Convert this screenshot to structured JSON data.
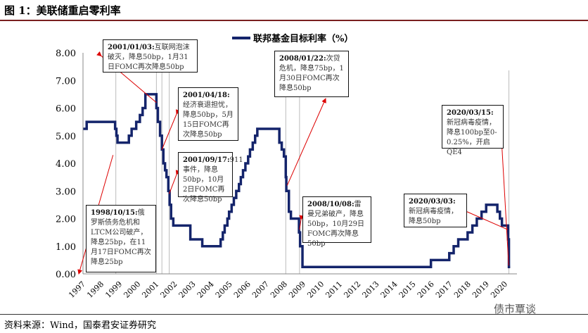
{
  "title": "图 1：美联储重启零利率",
  "source": "资料来源：Wind，国泰君安证券研究",
  "watermark": "债市覃谈",
  "chart_data": {
    "type": "line",
    "title": "",
    "legend": "联邦基金目标利率（%）",
    "legend_placement": "top-center",
    "xlabel": "",
    "ylabel": "",
    "ylim": [
      0,
      8
    ],
    "yticks": [
      "0.00",
      "1.00",
      "2.00",
      "3.00",
      "4.00",
      "5.00",
      "6.00",
      "7.00",
      "8.00"
    ],
    "xticks": [
      "1997",
      "1998",
      "1999",
      "2000",
      "2001",
      "2002",
      "2003",
      "2004",
      "2005",
      "2006",
      "2007",
      "2008",
      "2009",
      "2010",
      "2011",
      "2012",
      "2013",
      "2014",
      "2015",
      "2016",
      "2017",
      "2018",
      "2019",
      "2020"
    ],
    "line_color": "#14246b",
    "series": [
      {
        "name": "联邦基金目标利率（%）",
        "points": [
          [
            1997.0,
            5.25
          ],
          [
            1997.2,
            5.5
          ],
          [
            1998.75,
            5.25
          ],
          [
            1998.82,
            5.0
          ],
          [
            1998.88,
            4.75
          ],
          [
            1999.5,
            5.0
          ],
          [
            1999.65,
            5.25
          ],
          [
            1999.9,
            5.5
          ],
          [
            2000.1,
            5.75
          ],
          [
            2000.25,
            6.0
          ],
          [
            2000.4,
            6.5
          ],
          [
            2001.0,
            6.0
          ],
          [
            2001.08,
            5.5
          ],
          [
            2001.2,
            5.0
          ],
          [
            2001.3,
            4.5
          ],
          [
            2001.38,
            4.0
          ],
          [
            2001.47,
            3.75
          ],
          [
            2001.55,
            3.5
          ],
          [
            2001.65,
            3.0
          ],
          [
            2001.72,
            2.5
          ],
          [
            2001.8,
            2.0
          ],
          [
            2001.92,
            1.75
          ],
          [
            2002.85,
            1.25
          ],
          [
            2003.5,
            1.0
          ],
          [
            2004.5,
            1.25
          ],
          [
            2004.62,
            1.5
          ],
          [
            2004.72,
            1.75
          ],
          [
            2004.87,
            2.0
          ],
          [
            2004.96,
            2.25
          ],
          [
            2005.1,
            2.5
          ],
          [
            2005.22,
            2.75
          ],
          [
            2005.35,
            3.0
          ],
          [
            2005.5,
            3.25
          ],
          [
            2005.6,
            3.5
          ],
          [
            2005.72,
            3.75
          ],
          [
            2005.85,
            4.0
          ],
          [
            2006.0,
            4.25
          ],
          [
            2006.1,
            4.5
          ],
          [
            2006.25,
            4.75
          ],
          [
            2006.38,
            5.0
          ],
          [
            2006.5,
            5.25
          ],
          [
            2007.7,
            4.75
          ],
          [
            2007.83,
            4.5
          ],
          [
            2007.95,
            4.25
          ],
          [
            2008.05,
            3.5
          ],
          [
            2008.08,
            3.0
          ],
          [
            2008.22,
            2.25
          ],
          [
            2008.33,
            2.0
          ],
          [
            2008.77,
            1.5
          ],
          [
            2008.83,
            1.0
          ],
          [
            2008.96,
            0.25
          ],
          [
            2015.96,
            0.5
          ],
          [
            2016.96,
            0.75
          ],
          [
            2017.2,
            1.0
          ],
          [
            2017.45,
            1.25
          ],
          [
            2017.96,
            1.5
          ],
          [
            2018.22,
            1.75
          ],
          [
            2018.46,
            2.0
          ],
          [
            2018.72,
            2.25
          ],
          [
            2018.97,
            2.5
          ],
          [
            2019.58,
            2.25
          ],
          [
            2019.72,
            2.0
          ],
          [
            2019.83,
            1.75
          ],
          [
            2020.17,
            1.25
          ],
          [
            2020.21,
            0.25
          ],
          [
            2020.28,
            0.25
          ]
        ]
      }
    ],
    "event_lines": [
      1998.79,
      2001.0,
      2001.3,
      2001.7,
      2008.05,
      2008.8,
      2020.21
    ],
    "annotations": [
      {
        "date": "1998/10/15:",
        "text": "俄罗斯债务危机和LTCM公司破产，降息25bp，在11月17日FOMC再次降息25bp",
        "target": [
          1998.79,
          4.9
        ]
      },
      {
        "date": "2001/01/03:",
        "text": "互联网泡沫破灭，降息50bp，1月31日FOMC再次降息50bp",
        "target": [
          2001.0,
          6.2
        ]
      },
      {
        "date": "2001/04/18:",
        "text": "经济衰退担忧，降息50bp，5月15日FOMC再次降息50bp",
        "target": [
          2001.3,
          4.5
        ]
      },
      {
        "date": "2001/09/17:",
        "text": "911事件，降息50bp，10月2日FOMC再次降息50bp",
        "target": [
          2001.7,
          2.9
        ]
      },
      {
        "date": "2008/01/22:",
        "text": "次贷危机，降息75bp，1月30日FOMC再次降息50bp",
        "target": [
          2008.05,
          3.8
        ]
      },
      {
        "date": "2008/10/08:",
        "text": "雷曼兄弟破产，降息50bp，10月29日FOMC再次降息50bp",
        "target": [
          2008.8,
          1.6
        ]
      },
      {
        "date": "2020/03/03:",
        "text": "新冠病毒疫情，降息50bp",
        "target": [
          2020.15,
          1.6
        ]
      },
      {
        "date": "2020/03/15:",
        "text": "新冠病毒疫情，降息100bp至0-0.25%，开启QE4",
        "target": [
          2020.2,
          0.3
        ]
      }
    ]
  }
}
